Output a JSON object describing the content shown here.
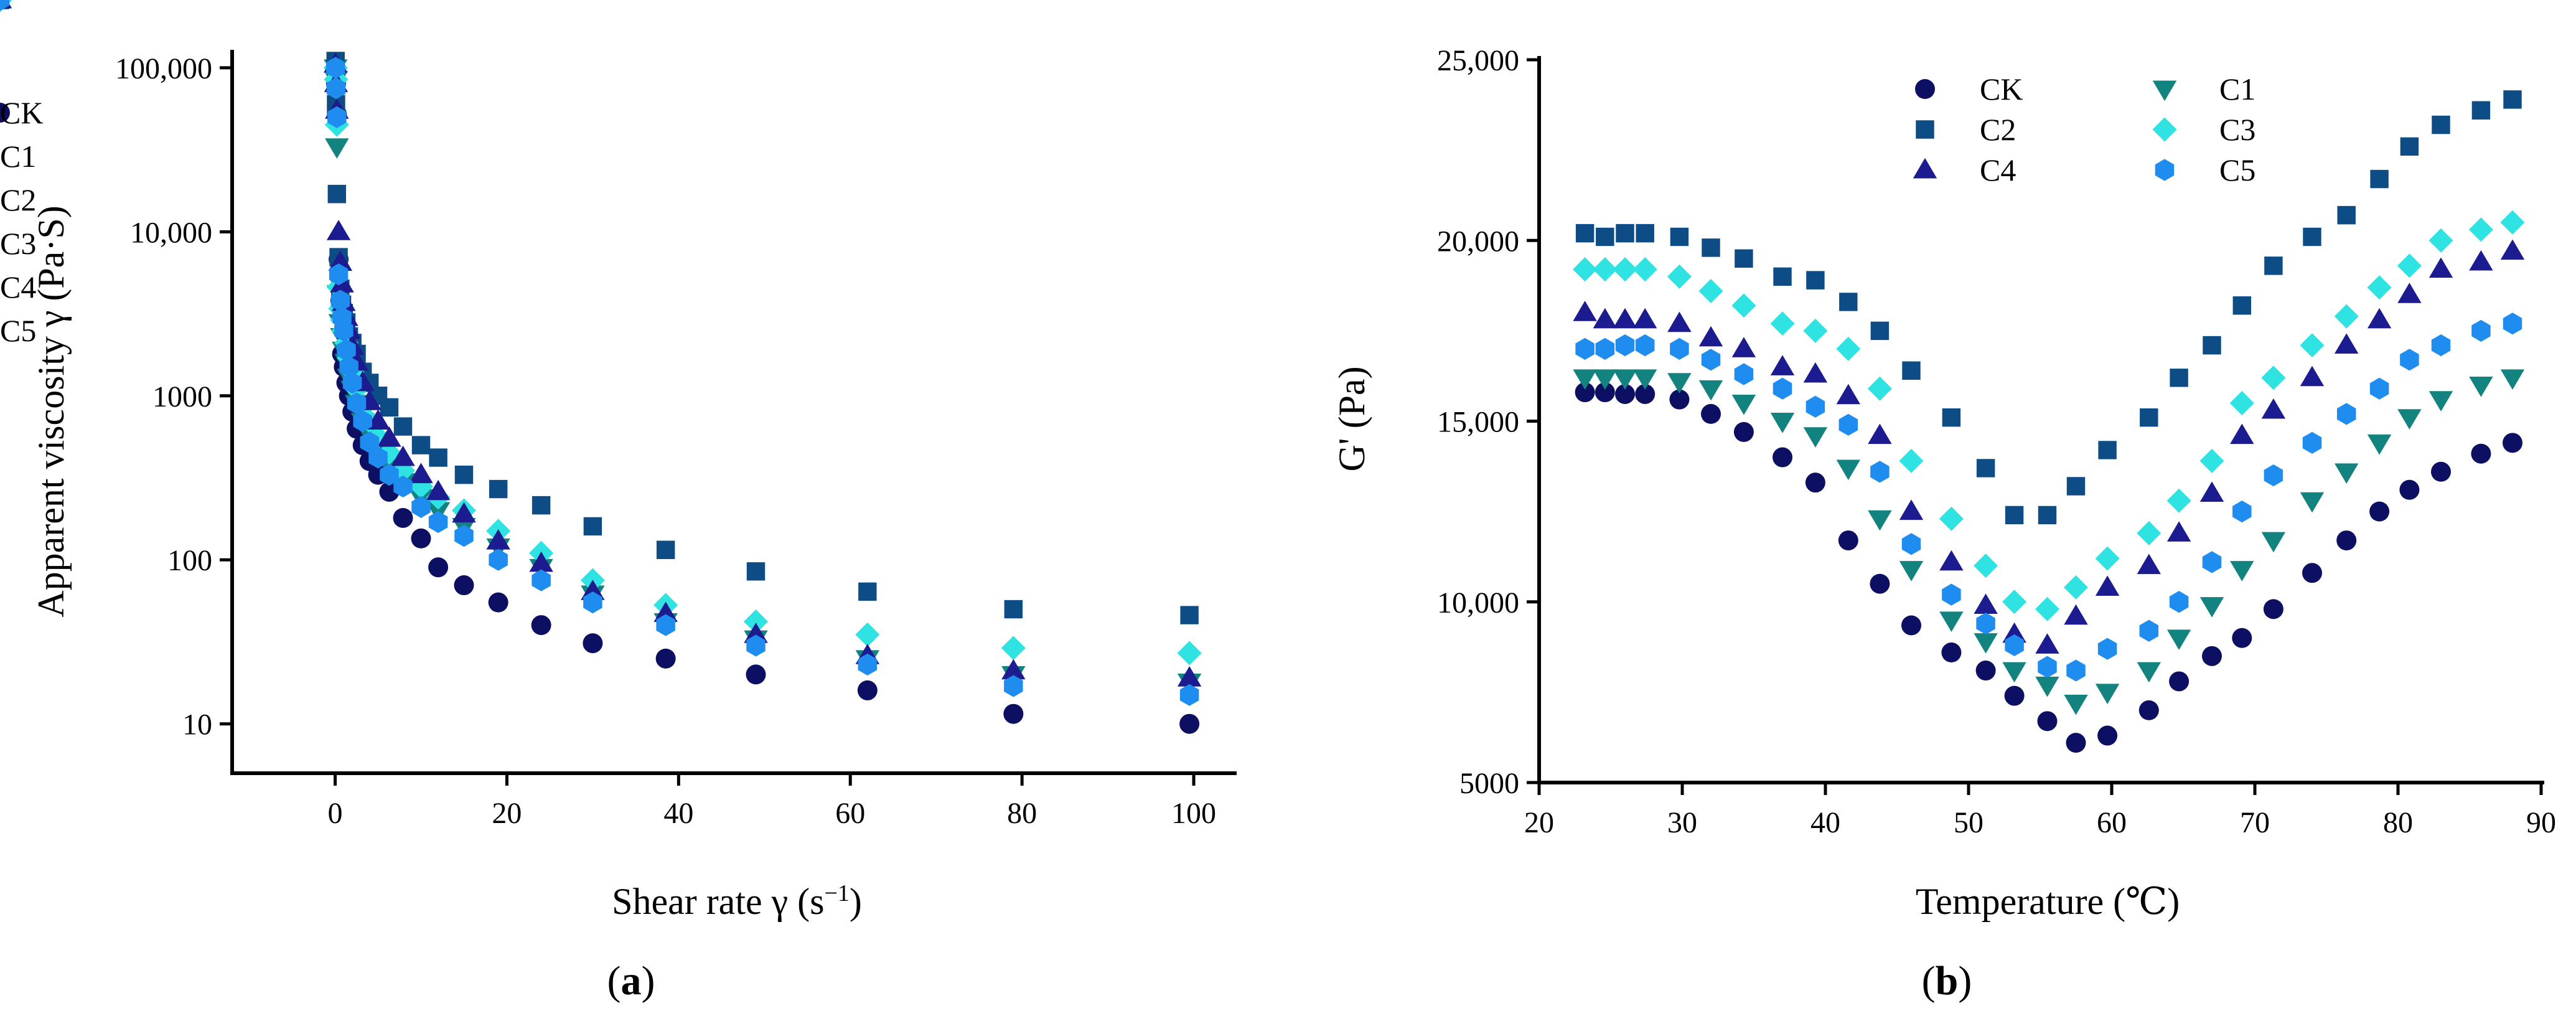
{
  "figure": {
    "panel_labels": [
      {
        "open": "(",
        "letter": "a",
        "close": ")"
      },
      {
        "open": "(",
        "letter": "b",
        "close": ")"
      }
    ]
  },
  "colors": {
    "CK": "#0d0f63",
    "C1": "#13837f",
    "C2": "#0d4c85",
    "C3": "#2fe3e3",
    "C4": "#1c1b8f",
    "C5": "#1f8cf0"
  },
  "markers": {
    "CK": "circle",
    "C1": "triangle-down",
    "C2": "square",
    "C3": "diamond",
    "C4": "triangle-up",
    "C5": "hexagon"
  },
  "chart_data": [
    {
      "type": "scatter",
      "panel": "a",
      "title": "",
      "xlabel": "Shear rate γ (s⁻¹)",
      "ylabel": "Apparent viscosity γ (Pa·S)",
      "xlim": [
        -12,
        105
      ],
      "ylim": [
        5,
        120000
      ],
      "y_scale": "log",
      "x_ticks": [
        0,
        20,
        40,
        60,
        80,
        100
      ],
      "x_tick_labels": [
        "0",
        "20",
        "40",
        "60",
        "80",
        "100"
      ],
      "y_ticks": [
        10,
        100,
        1000,
        10000,
        100000
      ],
      "y_tick_labels": [
        "10",
        "100",
        "1000",
        "10,000",
        "100,000"
      ],
      "legend_position": "upper-right",
      "grid": false,
      "x": [
        0.05,
        0.1,
        0.2,
        0.4,
        0.6,
        0.8,
        1.0,
        1.3,
        1.6,
        2.0,
        2.5,
        3.2,
        4.0,
        5.0,
        6.3,
        7.9,
        10,
        12,
        15,
        19,
        24,
        30,
        38.5,
        49,
        62,
        79,
        99.5
      ],
      "series": [
        {
          "name": "CK",
          "values": [
            95000,
            80000,
            52000,
            6800,
            3800,
            1800,
            1500,
            1200,
            1000,
            800,
            630,
            500,
            400,
            330,
            260,
            180,
            135,
            90,
            70,
            55,
            40,
            31,
            25,
            20,
            16,
            11.5,
            10
          ]
        },
        {
          "name": "C1",
          "values": [
            100000,
            85000,
            33000,
            4200,
            2800,
            2300,
            1900,
            1600,
            1300,
            1100,
            900,
            700,
            580,
            470,
            380,
            300,
            240,
            200,
            160,
            120,
            90,
            62,
            42,
            33,
            25,
            20,
            18
          ]
        },
        {
          "name": "C2",
          "values": [
            110000,
            60000,
            17000,
            7000,
            4500,
            3600,
            3200,
            2800,
            2300,
            2100,
            1800,
            1400,
            1200,
            1000,
            850,
            650,
            500,
            420,
            330,
            270,
            215,
            160,
            115,
            85,
            64,
            50,
            46
          ]
        },
        {
          "name": "C3",
          "values": [
            100000,
            85000,
            45000,
            4600,
            3400,
            2900,
            2500,
            2100,
            1700,
            1400,
            1100,
            850,
            700,
            560,
            450,
            350,
            280,
            240,
            200,
            150,
            110,
            75,
            53,
            42,
            35,
            29,
            27
          ]
        },
        {
          "name": "C4",
          "values": [
            105000,
            80000,
            55000,
            10000,
            6500,
            4800,
            3700,
            3000,
            2500,
            2000,
            1600,
            1200,
            920,
            700,
            550,
            420,
            330,
            260,
            190,
            130,
            95,
            64,
            47,
            35,
            26,
            21,
            19
          ]
        },
        {
          "name": "C5",
          "values": [
            100000,
            75000,
            50000,
            5500,
            3800,
            3000,
            2500,
            1900,
            1500,
            1200,
            900,
            700,
            520,
            420,
            330,
            280,
            210,
            170,
            140,
            100,
            75,
            55,
            40,
            30,
            23,
            17,
            15
          ]
        }
      ]
    },
    {
      "type": "scatter",
      "panel": "b",
      "title": "",
      "xlabel": "Temperature (℃)",
      "ylabel": "G' (Pa)",
      "xlim": [
        20,
        90
      ],
      "ylim": [
        5000,
        25000
      ],
      "y_scale": "linear",
      "x_ticks": [
        20,
        30,
        40,
        50,
        60,
        70,
        80,
        90
      ],
      "x_tick_labels": [
        "20",
        "30",
        "40",
        "50",
        "60",
        "70",
        "80",
        "90"
      ],
      "y_ticks": [
        5000,
        10000,
        15000,
        20000,
        25000
      ],
      "y_tick_labels": [
        "5000",
        "10,000",
        "15,000",
        "20,000",
        "25,000"
      ],
      "legend_position": "upper-left",
      "grid": false,
      "x": [
        23.2,
        24.6,
        26.0,
        27.4,
        29.8,
        32.0,
        34.3,
        37.0,
        39.3,
        41.6,
        43.8,
        46.0,
        48.8,
        51.2,
        53.2,
        55.5,
        57.5,
        59.7,
        62.6,
        64.7,
        67.0,
        69.1,
        71.3,
        74.0,
        76.4,
        78.7,
        80.8,
        83.0,
        85.8,
        88.0
      ],
      "series": [
        {
          "name": "CK",
          "values": [
            15800,
            15800,
            15750,
            15750,
            15600,
            15200,
            14700,
            14000,
            13300,
            11700,
            10500,
            9350,
            8600,
            8100,
            7400,
            6700,
            6100,
            6300,
            7000,
            7800,
            8500,
            9000,
            9800,
            10800,
            11700,
            12500,
            13100,
            13600,
            14100,
            14400
          ]
        },
        {
          "name": "C1",
          "values": [
            16200,
            16200,
            16200,
            16200,
            16100,
            15900,
            15500,
            15000,
            14600,
            13700,
            12300,
            10900,
            9500,
            8900,
            8100,
            7700,
            7200,
            7500,
            8100,
            9000,
            9900,
            10900,
            11700,
            12800,
            13600,
            14400,
            15100,
            15600,
            16000,
            16200
          ]
        },
        {
          "name": "C2",
          "values": [
            20200,
            20100,
            20200,
            20200,
            20100,
            19800,
            19500,
            19000,
            18900,
            18300,
            17500,
            16400,
            15100,
            13700,
            12400,
            12400,
            13200,
            14200,
            15100,
            16200,
            17100,
            18200,
            19300,
            20100,
            20700,
            21700,
            22600,
            23200,
            23600,
            23900
          ]
        },
        {
          "name": "C3",
          "values": [
            19200,
            19200,
            19200,
            19200,
            19000,
            18600,
            18200,
            17700,
            17500,
            17000,
            15900,
            13900,
            12300,
            11000,
            10000,
            9800,
            10400,
            11200,
            11900,
            12800,
            13900,
            15500,
            16200,
            17100,
            17900,
            18700,
            19300,
            20000,
            20300,
            20500
          ]
        },
        {
          "name": "C4",
          "values": [
            18000,
            17800,
            17800,
            17800,
            17700,
            17300,
            17000,
            16500,
            16300,
            15700,
            14600,
            12500,
            11100,
            9900,
            9100,
            8800,
            9600,
            10400,
            11000,
            11900,
            13000,
            14600,
            15300,
            16200,
            17100,
            17800,
            18500,
            19200,
            19400,
            19700
          ]
        },
        {
          "name": "C5",
          "values": [
            17000,
            17000,
            17100,
            17100,
            17000,
            16700,
            16300,
            15900,
            15400,
            14900,
            13600,
            11600,
            10200,
            9400,
            8800,
            8200,
            8100,
            8700,
            9200,
            10000,
            11100,
            12500,
            13500,
            14400,
            15200,
            15900,
            16700,
            17100,
            17500,
            17700
          ]
        }
      ]
    }
  ]
}
